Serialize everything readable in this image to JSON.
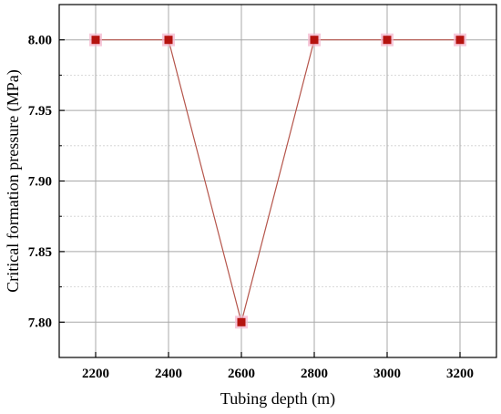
{
  "chart_data": {
    "type": "line",
    "title": "",
    "xlabel": "Tubing depth (m)",
    "ylabel": "Critical formation pressure (MPa)",
    "xlim": [
      2100,
      3300
    ],
    "ylim": [
      7.775,
      8.025
    ],
    "x_ticks": [
      "2200",
      "2400",
      "2600",
      "2800",
      "3000",
      "3200"
    ],
    "y_ticks": [
      "7.80",
      "7.85",
      "7.90",
      "7.95",
      "8.00"
    ],
    "grid": true,
    "series": [
      {
        "x": [
          2200,
          2400,
          2600,
          2800,
          3000,
          3200
        ],
        "y": [
          8.0,
          8.0,
          7.8,
          8.0,
          8.0,
          8.0
        ],
        "line_color": "#b5554b",
        "marker_color": "#b5130f",
        "marker_halo_color": "#f4b8cf",
        "marker": "square"
      }
    ]
  }
}
